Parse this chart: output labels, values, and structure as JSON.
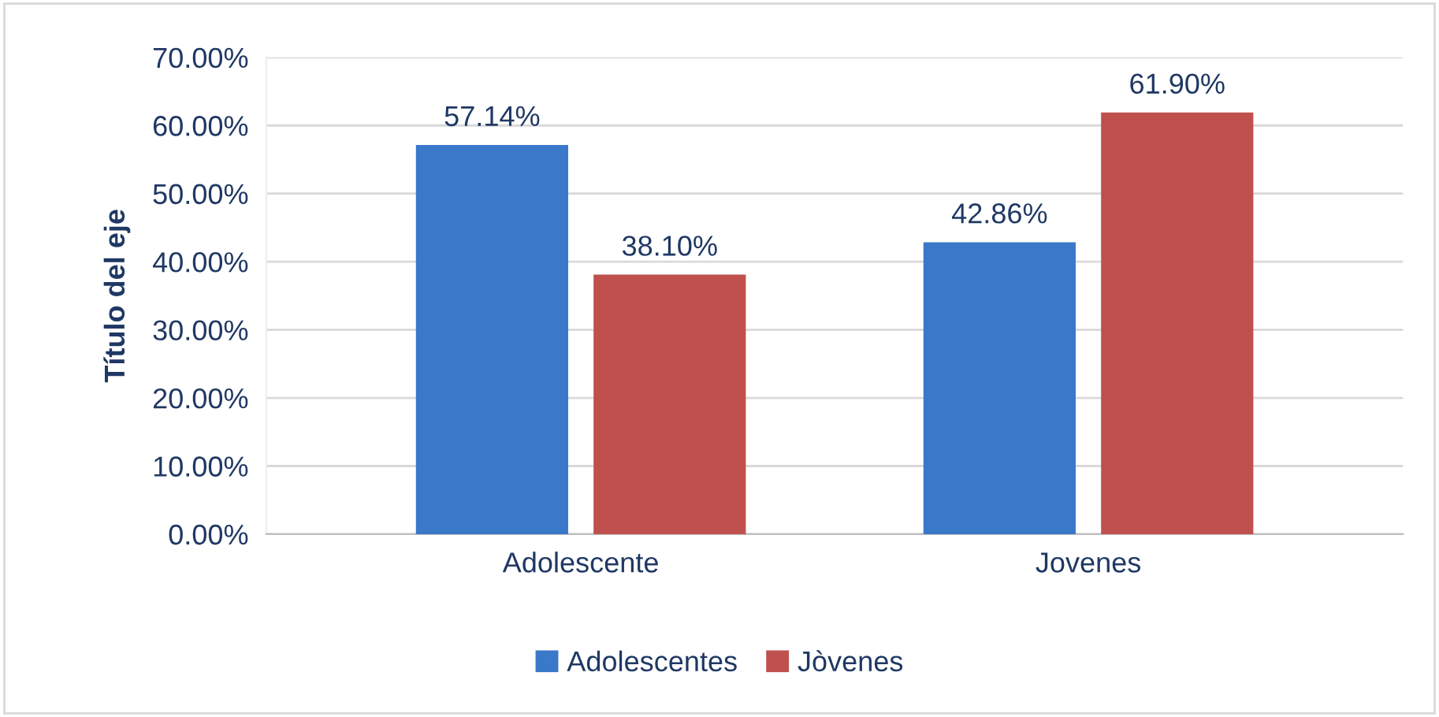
{
  "chart_data": {
    "type": "bar",
    "ylabel": "Título del eje",
    "categories": [
      "Adolescente",
      "Jovenes"
    ],
    "series": [
      {
        "name": "Adolescentes",
        "color": "#3a78c9",
        "values": [
          57.14,
          42.86
        ],
        "value_labels": [
          "57.14%",
          "42.86%"
        ]
      },
      {
        "name": "Jòvenes",
        "color": "#c0504d",
        "values": [
          38.1,
          61.9
        ],
        "value_labels": [
          "38.10%",
          "61.90%"
        ]
      }
    ],
    "ylim": [
      0,
      70
    ],
    "yticks": [
      {
        "value": 0,
        "label": "0.00%"
      },
      {
        "value": 10,
        "label": "10.00%"
      },
      {
        "value": 20,
        "label": "20.00%"
      },
      {
        "value": 30,
        "label": "30.00%"
      },
      {
        "value": 40,
        "label": "40.00%"
      },
      {
        "value": 50,
        "label": "50.00%"
      },
      {
        "value": 60,
        "label": "60.00%"
      },
      {
        "value": 70,
        "label": "70.00%"
      }
    ],
    "grid": "y",
    "legend": "bottom"
  }
}
